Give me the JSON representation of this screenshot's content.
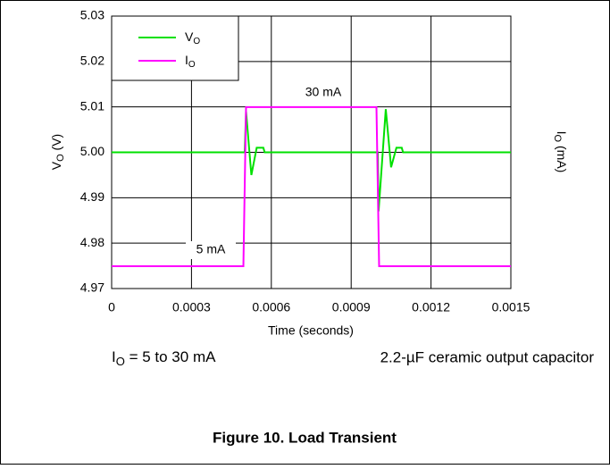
{
  "chart_data": {
    "type": "line",
    "x_label": "Time (seconds)",
    "y_label": {
      "main": "V",
      "sub": "O",
      "rest": " (V)"
    },
    "y2_label": {
      "main": "I",
      "sub": "O",
      "rest": " (mA)"
    },
    "xlim": [
      0,
      0.0015
    ],
    "xticks": [
      0,
      0.0003,
      0.0006,
      0.0009,
      0.0012,
      0.0015
    ],
    "ylim": [
      4.97,
      5.03
    ],
    "yticks": [
      {
        "value": 4.97,
        "label": "4.97"
      },
      {
        "value": 4.98,
        "label": "4.98"
      },
      {
        "value": 4.99,
        "label": "4.99"
      },
      {
        "value": 5.0,
        "label": "5.00"
      },
      {
        "value": 5.01,
        "label": "5.01"
      },
      {
        "value": 5.02,
        "label": "5.02"
      },
      {
        "value": 5.03,
        "label": "5.03"
      }
    ],
    "y2lim": [
      1.5,
      44.3
    ],
    "grid": true,
    "legend": "upper left",
    "series": [
      {
        "name": "V",
        "name_sub": "O",
        "color": "#00e000",
        "x": [
          0,
          0.0005,
          0.000505,
          0.000525,
          0.000545,
          0.00057,
          0.000575,
          0.001,
          0.001003,
          0.00103,
          0.00105,
          0.00107,
          0.00109,
          0.001095,
          0.0015
        ],
        "values": [
          5.0,
          5.0,
          5.009,
          4.995,
          5.001,
          5.001,
          5.0,
          5.0,
          4.987,
          5.0095,
          4.9967,
          5.001,
          5.001,
          5.0,
          5.0
        ]
      },
      {
        "name": "I",
        "name_sub": "O",
        "color": "#ff00ff",
        "axis": "y2",
        "x": [
          0,
          0.000495,
          0.000505,
          0.000995,
          0.001005,
          0.0015
        ],
        "values": [
          5,
          5,
          30,
          30,
          5,
          5
        ]
      }
    ],
    "annotations": [
      "30 mA",
      "5 mA"
    ],
    "conditions": {
      "left": {
        "main": "I",
        "sub": "O",
        "rest": " = 5 to 30 mA"
      },
      "right": "2.2-µF ceramic output capacitor"
    },
    "caption": "Figure 10. Load Transient"
  }
}
